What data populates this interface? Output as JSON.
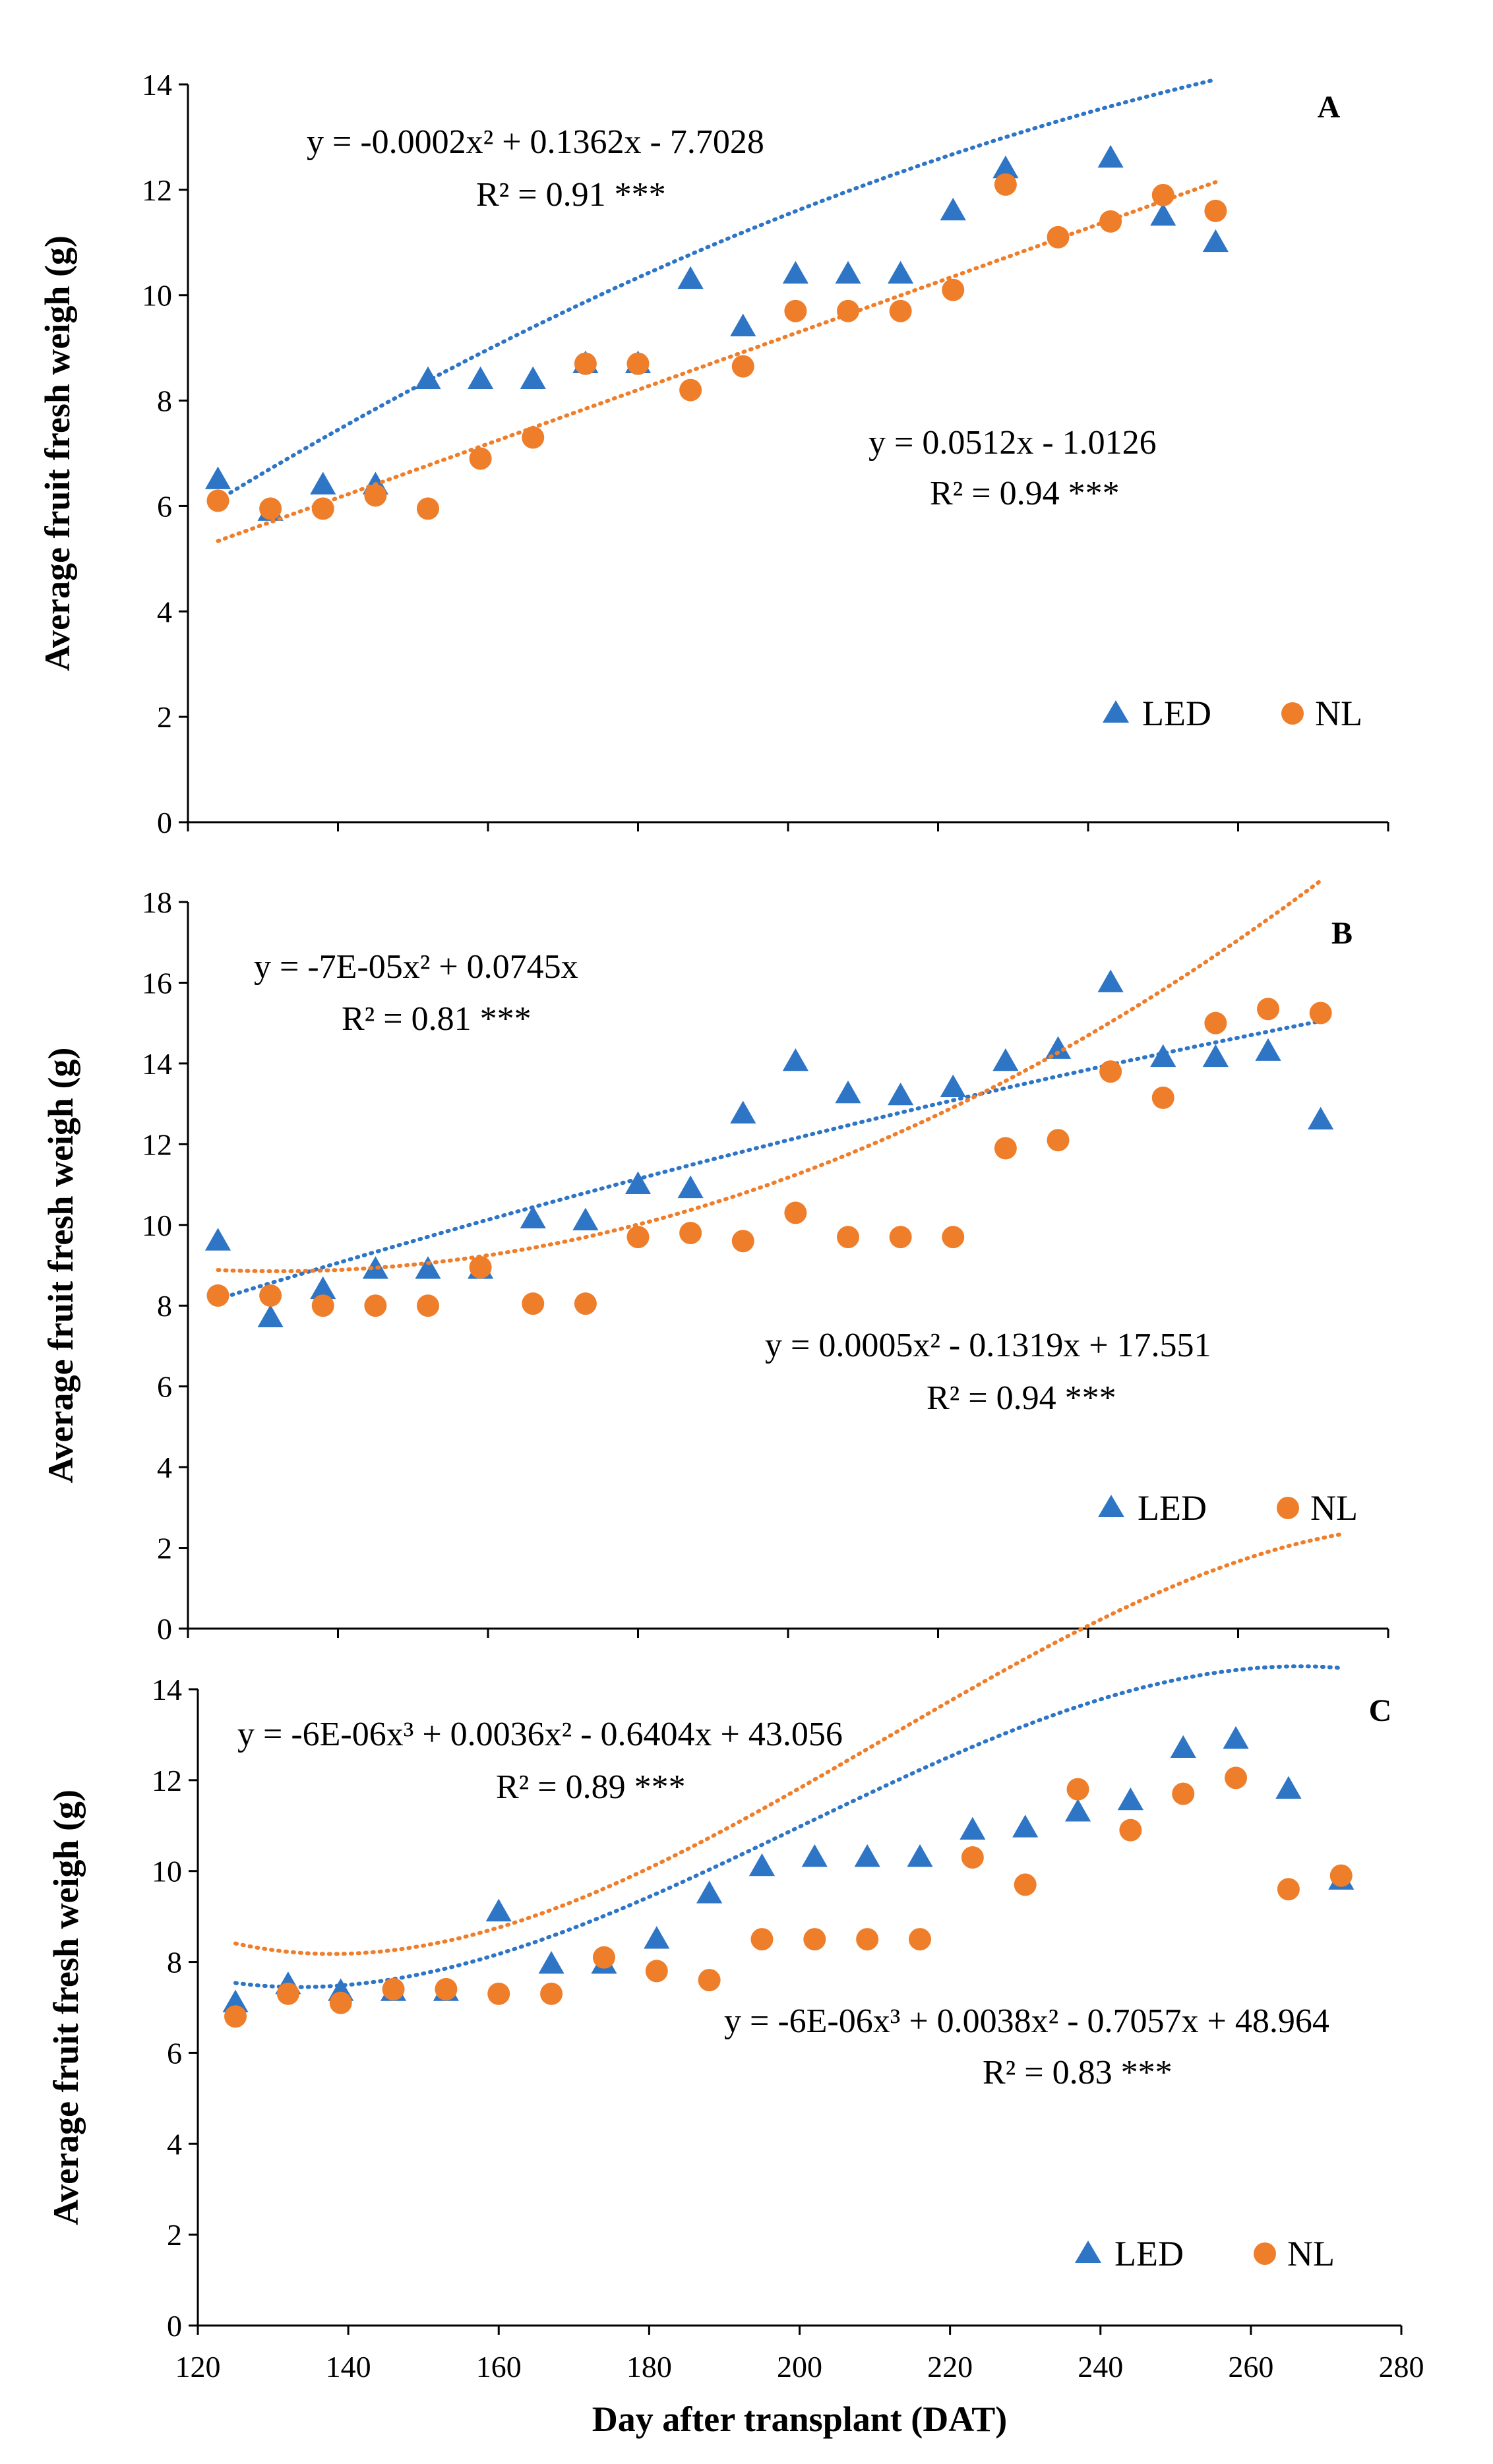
{
  "colors": {
    "led": "#2e75c6",
    "nl": "#ef7e2b",
    "axis": "#000000"
  },
  "chart_data": [
    {
      "panel": "A",
      "type": "scatter",
      "ylabel": "Average fruit fresh weigh (g)",
      "xlabel": "",
      "xlim": [
        120,
        280
      ],
      "ylim": [
        0,
        14
      ],
      "yticks": [
        "0",
        "2",
        "4",
        "6",
        "8",
        "10",
        "12",
        "14"
      ],
      "xticks": [],
      "series": [
        {
          "name": "LED",
          "marker": "triangle",
          "x": [
            124,
            131,
            138,
            145,
            152,
            159,
            166,
            173,
            180,
            187,
            194,
            201,
            208,
            215,
            222,
            229,
            243,
            250,
            257
          ],
          "y": [
            6.5,
            5.9,
            6.4,
            6.4,
            8.4,
            8.4,
            8.4,
            8.7,
            8.7,
            10.3,
            9.4,
            10.4,
            10.4,
            10.4,
            11.6,
            12.4,
            12.6,
            11.5,
            11.0
          ],
          "trend": {
            "type": "poly",
            "coef": [
              -7.7028,
              0.1362,
              -0.0002
            ],
            "xrange": [
              124,
              257
            ]
          },
          "equation": "y = -0.0002x² + 0.1362x - 7.7028",
          "r2": "R² = 0.91 ***"
        },
        {
          "name": "NL",
          "marker": "circle",
          "x": [
            124,
            131,
            138,
            145,
            152,
            159,
            166,
            173,
            180,
            187,
            194,
            201,
            208,
            215,
            222,
            229,
            236,
            243,
            250,
            257
          ],
          "y": [
            6.1,
            5.95,
            5.95,
            6.2,
            5.95,
            6.9,
            7.3,
            8.7,
            8.7,
            8.2,
            8.65,
            9.7,
            9.7,
            9.7,
            10.1,
            12.1,
            11.1,
            11.4,
            11.9,
            11.6
          ],
          "trend": {
            "type": "poly",
            "coef": [
              -1.0126,
              0.0512
            ],
            "xrange": [
              124,
              257
            ]
          },
          "equation": "y = 0.0512x - 1.0126",
          "r2": "R² = 0.94 ***"
        }
      ],
      "legend": [
        "LED",
        "NL"
      ]
    },
    {
      "panel": "B",
      "type": "scatter",
      "ylabel": "Average fruit fresh weigh (g)",
      "xlabel": "",
      "xlim": [
        120,
        280
      ],
      "ylim": [
        0,
        18
      ],
      "yticks": [
        "0",
        "2",
        "4",
        "6",
        "8",
        "10",
        "12",
        "14",
        "16",
        "18"
      ],
      "xticks": [],
      "series": [
        {
          "name": "LED",
          "marker": "triangle",
          "x": [
            124,
            131,
            138,
            145,
            152,
            159,
            166,
            173,
            180,
            187,
            194,
            201,
            208,
            215,
            222,
            229,
            236,
            243,
            250,
            257,
            264,
            271
          ],
          "y": [
            9.6,
            7.7,
            8.4,
            8.9,
            8.9,
            8.9,
            10.15,
            10.1,
            11.0,
            10.9,
            12.75,
            14.05,
            13.25,
            13.2,
            13.4,
            14.05,
            14.35,
            16.0,
            14.15,
            14.15,
            14.3,
            12.6
          ],
          "trend": {
            "type": "poly",
            "coef": [
              0,
              0.0745,
              -7e-05
            ],
            "xrange": [
              124,
              271
            ]
          },
          "equation": "y = -7E-05x² + 0.0745x",
          "r2": "R² = 0.81 ***"
        },
        {
          "name": "NL",
          "marker": "circle",
          "x": [
            124,
            131,
            138,
            145,
            152,
            159,
            166,
            173,
            180,
            187,
            194,
            201,
            208,
            215,
            222,
            229,
            236,
            243,
            250,
            257,
            264,
            271
          ],
          "y": [
            8.25,
            8.25,
            8.0,
            8.0,
            8.0,
            8.95,
            8.05,
            8.05,
            9.7,
            9.8,
            9.6,
            10.3,
            9.7,
            9.7,
            9.7,
            11.9,
            12.1,
            13.8,
            13.15,
            15.0,
            15.35,
            15.25
          ],
          "trend": {
            "type": "poly",
            "coef": [
              17.551,
              -0.1319,
              0.0005
            ],
            "xrange": [
              124,
              271
            ]
          },
          "equation": "y = 0.0005x² - 0.1319x + 17.551",
          "r2": "R² = 0.94 ***"
        }
      ],
      "legend": [
        "LED",
        "NL"
      ]
    },
    {
      "panel": "C",
      "type": "scatter",
      "ylabel": "Average fruit fresh weigh (g)",
      "xlabel": "Day after transplant (DAT)",
      "xlim": [
        120,
        280
      ],
      "ylim": [
        0,
        14
      ],
      "yticks": [
        "0",
        "2",
        "4",
        "6",
        "8",
        "10",
        "12",
        "14"
      ],
      "xticks": [
        "120",
        "140",
        "160",
        "180",
        "200",
        "220",
        "240",
        "260",
        "280"
      ],
      "series": [
        {
          "name": "LED",
          "marker": "triangle",
          "x": [
            125,
            132,
            139,
            146,
            153,
            160,
            167,
            174,
            181,
            188,
            195,
            202,
            209,
            216,
            223,
            230,
            237,
            244,
            251,
            258,
            265,
            272
          ],
          "y": [
            7.1,
            7.5,
            7.35,
            7.35,
            7.35,
            9.1,
            7.95,
            7.95,
            8.5,
            9.5,
            10.1,
            10.3,
            10.3,
            10.3,
            10.9,
            10.95,
            11.3,
            11.55,
            12.7,
            12.9,
            11.8,
            9.8
          ],
          "trend": {
            "type": "poly",
            "coef": [
              43.056,
              -0.6404,
              0.0036,
              -6e-06
            ],
            "xrange": [
              125,
              272
            ]
          },
          "equation": "y = -6E-06x³ + 0.0036x² - 0.6404x + 43.056",
          "r2": "R² = 0.89 ***"
        },
        {
          "name": "NL",
          "marker": "circle",
          "x": [
            125,
            132,
            139,
            146,
            153,
            160,
            167,
            174,
            181,
            188,
            195,
            202,
            209,
            216,
            223,
            230,
            237,
            244,
            251,
            258,
            265,
            272
          ],
          "y": [
            6.8,
            7.3,
            7.1,
            7.4,
            7.4,
            7.3,
            7.3,
            8.1,
            7.8,
            7.6,
            8.5,
            8.5,
            8.5,
            8.5,
            10.3,
            9.7,
            11.8,
            10.9,
            11.7,
            12.05,
            9.6,
            9.9
          ],
          "trend": {
            "type": "poly",
            "coef": [
              48.964,
              -0.7057,
              0.0038,
              -6e-06
            ],
            "xrange": [
              125,
              272
            ]
          },
          "equation": "y = -6E-06x³ + 0.0038x² - 0.7057x + 48.964",
          "r2": "R² = 0.83 ***"
        }
      ],
      "legend": [
        "LED",
        "NL"
      ]
    }
  ]
}
